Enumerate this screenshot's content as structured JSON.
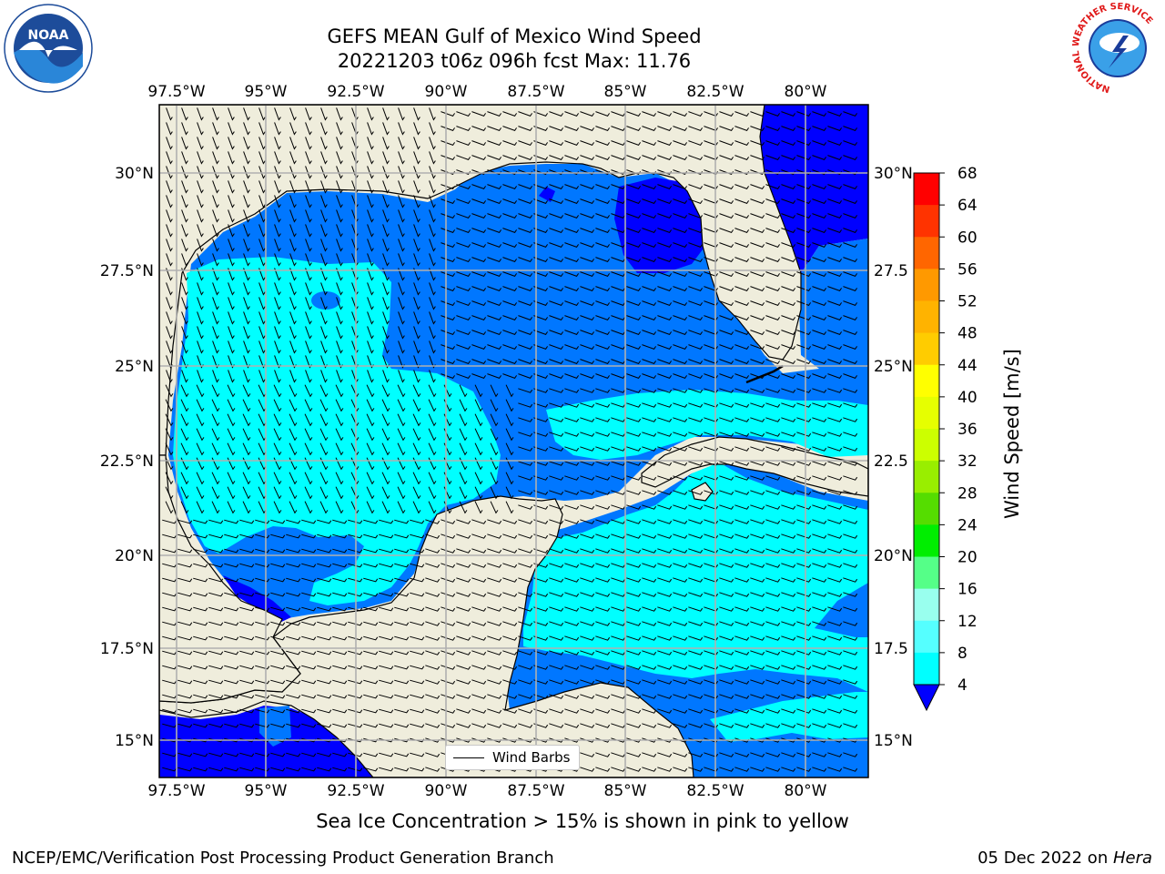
{
  "title_line1": "GEFS MEAN Gulf of Mexico Wind Speed",
  "title_line2": "20221203 t06z 096h fcst   Max: 11.76",
  "lon_labels": [
    "97.5°W",
    "95°W",
    "92.5°W",
    "90°W",
    "87.5°W",
    "85°W",
    "82.5°W",
    "80°W"
  ],
  "lat_labels": [
    "30°N",
    "27.5°N",
    "25°N",
    "22.5°N",
    "20°N",
    "17.5°N",
    "15°N"
  ],
  "lat_labels_right": [
    "30°N",
    "27.5",
    "25°N",
    "22.5",
    "20°N",
    "17.5",
    "15°N"
  ],
  "colorbar": {
    "ticks": [
      "68",
      "64",
      "60",
      "56",
      "52",
      "48",
      "44",
      "40",
      "36",
      "32",
      "28",
      "24",
      "20",
      "16",
      "12",
      "8",
      "4"
    ],
    "label": "Wind Speed [m/s]",
    "colors": [
      "#ff0000",
      "#ff3300",
      "#ff6600",
      "#ff9900",
      "#ffb300",
      "#ffcc00",
      "#ffff00",
      "#e6ff00",
      "#ccff00",
      "#99ee00",
      "#55dd00",
      "#00ee00",
      "#55ff88",
      "#99ffee",
      "#55ffff",
      "#00ffff",
      "#0077ff"
    ],
    "under_color": "#0000ff"
  },
  "legend_text": "Wind Barbs",
  "caption": "Sea Ice Concentration > 15% is shown in pink to yellow",
  "footer_left": "NCEP/EMC/Verification Post Processing Product Generation Branch",
  "footer_right_date": "05 Dec 2022 on ",
  "footer_right_host": "Hera",
  "logos": {
    "left": "NOAA",
    "right": "NATIONAL WEATHER SERVICE"
  },
  "map_colors": {
    "land": "#efeddc",
    "coast": "#000000",
    "grid": "#b0b0b0",
    "wind_4_8": "#0077ff",
    "wind_8_12": "#00ffff",
    "wind_lt_4": "#0000ff"
  }
}
